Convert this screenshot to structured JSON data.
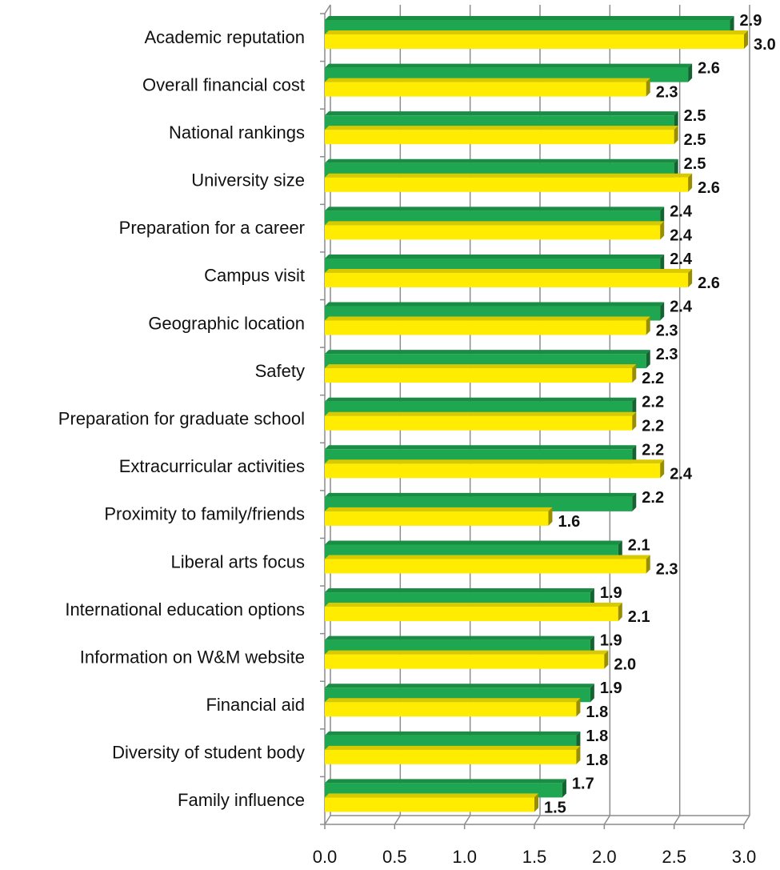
{
  "chart_data": {
    "type": "bar",
    "orientation": "horizontal",
    "categories": [
      "Academic reputation",
      "Overall financial cost",
      "National rankings",
      "University size",
      "Preparation for a career",
      "Campus visit",
      "Geographic location",
      "Safety",
      "Preparation for graduate school",
      "Extracurricular activities",
      "Proximity to family/friends",
      "Liberal arts focus",
      "International education options",
      "Information on W&M website",
      "Financial aid",
      "Diversity of student body",
      "Family influence"
    ],
    "series": [
      {
        "color": "#1fa650",
        "values": [
          2.9,
          2.6,
          2.5,
          2.5,
          2.4,
          2.4,
          2.4,
          2.3,
          2.2,
          2.2,
          2.2,
          2.1,
          1.9,
          1.9,
          1.9,
          1.8,
          1.7
        ],
        "labels": [
          "2.9",
          "2.6",
          "2.5",
          "2.5",
          "2.4",
          "2.4",
          "2.4",
          "2.3",
          "2.2",
          "2.2",
          "2.2",
          "2.1",
          "1.9",
          "1.9",
          "1.9",
          "1.8",
          "1.7"
        ]
      },
      {
        "color": "#ffec00",
        "values": [
          3.0,
          2.3,
          2.5,
          2.6,
          2.4,
          2.6,
          2.3,
          2.2,
          2.2,
          2.4,
          1.6,
          2.3,
          2.1,
          2.0,
          1.8,
          1.8,
          1.5
        ],
        "labels": [
          "3.0",
          "2.3",
          "2.5",
          "2.6",
          "2.4",
          "2.6",
          "2.3",
          "2.2",
          "2.2",
          "2.4",
          "1.6",
          "2.3",
          "2.1",
          "2.0",
          "1.8",
          "1.8",
          "1.5"
        ]
      }
    ],
    "xlim": [
      0,
      3.0
    ],
    "xticks": [
      "0.0",
      "0.5",
      "1.0",
      "1.5",
      "2.0",
      "2.5",
      "3.0"
    ],
    "grid": true,
    "legend": "none",
    "title": "",
    "xlabel": "",
    "ylabel": ""
  }
}
